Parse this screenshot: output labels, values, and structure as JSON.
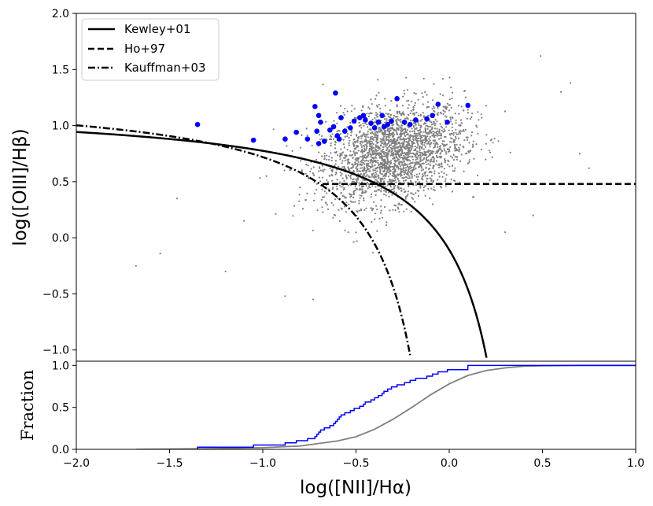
{
  "chart_data": [
    {
      "type": "scatter",
      "panel": "bpt-diagram",
      "xlabel": "log([NII]/Hα)",
      "ylabel": "log([OIII]/Hβ)",
      "xlim": [
        -2.0,
        1.0
      ],
      "ylim": [
        -1.1,
        2.0
      ],
      "yticks": [
        -1.0,
        -0.5,
        0.0,
        0.5,
        1.0,
        1.5,
        2.0
      ],
      "ytick_labels": [
        "−1.0",
        "−0.5",
        "0.0",
        "0.5",
        "1.0",
        "1.5",
        "2.0"
      ],
      "legend_position": "top-left",
      "legend": [
        {
          "label": "Kewley+01",
          "style": "solid"
        },
        {
          "label": "Ho+97",
          "style": "dashed"
        },
        {
          "label": "Kauffman+03",
          "style": "dashdot"
        }
      ],
      "curves": {
        "kewley01": {
          "label": "Kewley+01",
          "formula": "0.61/(x-0.47)+1.19",
          "x_range": [
            -2.0,
            0.2
          ]
        },
        "kauffmann03": {
          "label": "Kauffman+03",
          "formula": "0.61/(x-0.05)+1.3",
          "x_range": [
            -2.0,
            -0.21
          ]
        },
        "ho97": {
          "label": "Ho+97",
          "y": 0.48,
          "x_range": [
            -0.68,
            1.0
          ]
        }
      },
      "background_series": {
        "name": "parent sample",
        "color": "#808080",
        "count": 2500,
        "center": [
          -0.3,
          0.75
        ],
        "spread": [
          0.19,
          0.3
        ],
        "extra_points": [
          [
            -1.68,
            -0.25
          ],
          [
            -1.55,
            -0.14
          ],
          [
            -1.46,
            0.35
          ],
          [
            -1.2,
            -0.3
          ],
          [
            -1.1,
            0.15
          ],
          [
            -0.88,
            -0.52
          ],
          [
            -0.73,
            -0.55
          ],
          [
            0.6,
            1.3
          ],
          [
            0.65,
            1.38
          ],
          [
            0.7,
            0.75
          ],
          [
            0.75,
            0.62
          ],
          [
            0.49,
            1.62
          ],
          [
            -0.98,
            0.55
          ],
          [
            0.45,
            0.2
          ],
          [
            0.3,
            0.05
          ]
        ]
      },
      "highlight_series": {
        "name": "selected sample",
        "color": "#0000ff",
        "points": [
          [
            -1.35,
            1.01
          ],
          [
            -1.05,
            0.87
          ],
          [
            -0.88,
            0.88
          ],
          [
            -0.82,
            0.94
          ],
          [
            -0.76,
            0.88
          ],
          [
            -0.72,
            1.17
          ],
          [
            -0.71,
            0.95
          ],
          [
            -0.7,
            1.09
          ],
          [
            -0.69,
            1.03
          ],
          [
            -0.7,
            0.84
          ],
          [
            -0.67,
            0.86
          ],
          [
            -0.64,
            0.96
          ],
          [
            -0.62,
            0.99
          ],
          [
            -0.61,
            1.29
          ],
          [
            -0.6,
            0.91
          ],
          [
            -0.59,
            0.88
          ],
          [
            -0.58,
            1.07
          ],
          [
            -0.56,
            0.95
          ],
          [
            -0.53,
            0.98
          ],
          [
            -0.51,
            1.04
          ],
          [
            -0.48,
            1.07
          ],
          [
            -0.46,
            1.09
          ],
          [
            -0.45,
            1.05
          ],
          [
            -0.42,
            1.02
          ],
          [
            -0.4,
            0.98
          ],
          [
            -0.38,
            1.03
          ],
          [
            -0.36,
            1.09
          ],
          [
            -0.35,
            0.99
          ],
          [
            -0.33,
            1.01
          ],
          [
            -0.31,
            1.04
          ],
          [
            -0.28,
            1.24
          ],
          [
            -0.24,
            1.03
          ],
          [
            -0.21,
            1.01
          ],
          [
            -0.18,
            1.05
          ],
          [
            -0.12,
            1.06
          ],
          [
            -0.09,
            1.09
          ],
          [
            -0.06,
            1.19
          ],
          [
            -0.01,
            1.03
          ],
          [
            0.1,
            1.18
          ]
        ]
      }
    },
    {
      "type": "line",
      "panel": "cumulative-fraction",
      "xlabel": "log([NII]/Hα)",
      "ylabel": "Fraction",
      "xlim": [
        -2.0,
        1.0
      ],
      "ylim": [
        0.0,
        1.05
      ],
      "xticks": [
        -2.0,
        -1.5,
        -1.0,
        -0.5,
        0.0,
        0.5,
        1.0
      ],
      "xtick_labels": [
        "−2.0",
        "−1.5",
        "−1.0",
        "−0.5",
        "0.0",
        "0.5",
        "1.0"
      ],
      "yticks": [
        0.0,
        0.5,
        1.0
      ],
      "ytick_labels": [
        "0.0",
        "0.5",
        "1.0"
      ],
      "series": [
        {
          "name": "parent sample CDF",
          "color": "#808080",
          "style": "smooth",
          "x": [
            -1.68,
            -1.2,
            -1.0,
            -0.8,
            -0.6,
            -0.5,
            -0.4,
            -0.3,
            -0.2,
            -0.1,
            0.0,
            0.1,
            0.2,
            0.3,
            0.4,
            0.5,
            0.7,
            1.0
          ],
          "y": [
            0.0,
            0.01,
            0.02,
            0.04,
            0.1,
            0.15,
            0.24,
            0.36,
            0.5,
            0.65,
            0.78,
            0.88,
            0.94,
            0.97,
            0.99,
            0.995,
            1.0,
            1.0
          ]
        },
        {
          "name": "selected sample CDF",
          "color": "#0000ff",
          "style": "step",
          "x": [
            -1.35,
            -1.05,
            -0.88,
            -0.82,
            -0.76,
            -0.72,
            -0.71,
            -0.7,
            -0.69,
            -0.67,
            -0.64,
            -0.62,
            -0.61,
            -0.6,
            -0.59,
            -0.58,
            -0.56,
            -0.53,
            -0.51,
            -0.48,
            -0.46,
            -0.45,
            -0.42,
            -0.4,
            -0.38,
            -0.36,
            -0.35,
            -0.33,
            -0.31,
            -0.28,
            -0.24,
            -0.21,
            -0.18,
            -0.12,
            -0.09,
            -0.06,
            -0.01,
            0.1,
            1.0
          ],
          "y": [
            0.026,
            0.051,
            0.077,
            0.103,
            0.128,
            0.154,
            0.179,
            0.205,
            0.231,
            0.256,
            0.282,
            0.308,
            0.333,
            0.359,
            0.385,
            0.41,
            0.436,
            0.462,
            0.487,
            0.513,
            0.538,
            0.564,
            0.59,
            0.615,
            0.641,
            0.667,
            0.692,
            0.718,
            0.744,
            0.769,
            0.795,
            0.821,
            0.846,
            0.872,
            0.897,
            0.923,
            0.949,
            1.0,
            1.0
          ]
        }
      ]
    }
  ]
}
